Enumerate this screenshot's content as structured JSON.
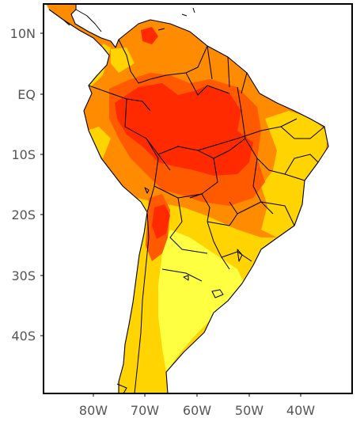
{
  "map": {
    "colors": {
      "ocean": "#ffffff",
      "light_yellow": "#fdff40",
      "yellow": "#ffd400",
      "orange": "#ff8c00",
      "dark_orange": "#ff5a00",
      "red": "#ff2a00",
      "border": "#000000",
      "frame": "#000000"
    },
    "y_ticks": [
      "10N",
      "EQ",
      "10S",
      "20S",
      "30S",
      "40S"
    ],
    "x_ticks": [
      "80W",
      "70W",
      "60W",
      "50W",
      "40W"
    ]
  }
}
